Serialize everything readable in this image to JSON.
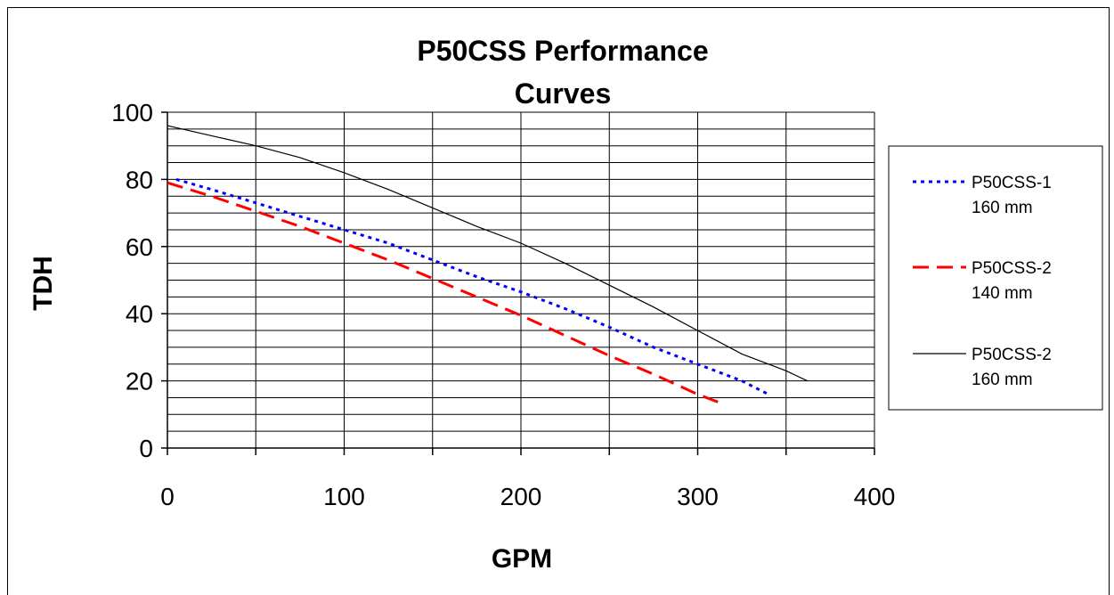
{
  "chart_data": {
    "type": "line",
    "title_line1": "P50CSS Performance",
    "title_line2": "Curves",
    "xlabel": "GPM",
    "ylabel": "TDH",
    "xlim": [
      0,
      400
    ],
    "ylim": [
      0,
      100
    ],
    "x_major_ticks": [
      0,
      100,
      200,
      300,
      400
    ],
    "x_tick_labels": [
      "0",
      "100",
      "200",
      "300",
      "400"
    ],
    "x_grid_step": 50,
    "y_major_ticks": [
      0,
      20,
      40,
      60,
      80,
      100
    ],
    "y_tick_labels": [
      "0",
      "20",
      "40",
      "60",
      "80",
      "100"
    ],
    "y_grid_step": 5,
    "grid": true,
    "legend_position": "right",
    "series": [
      {
        "name_line1": "P50CSS-1",
        "name_line2": "160 mm",
        "color": "#0000ff",
        "style": "dotted",
        "points": [
          [
            5,
            80
          ],
          [
            25,
            77
          ],
          [
            50,
            73
          ],
          [
            75,
            69
          ],
          [
            100,
            65
          ],
          [
            125,
            61
          ],
          [
            150,
            56
          ],
          [
            175,
            51
          ],
          [
            200,
            46.5
          ],
          [
            225,
            41.5
          ],
          [
            250,
            36
          ],
          [
            275,
            30
          ],
          [
            300,
            25
          ],
          [
            325,
            20
          ],
          [
            340,
            16
          ]
        ]
      },
      {
        "name_line1": "P50CSS-2",
        "name_line2": "140 mm",
        "color": "#ff0000",
        "style": "dashed",
        "points": [
          [
            0,
            79
          ],
          [
            25,
            75
          ],
          [
            50,
            70.5
          ],
          [
            75,
            66
          ],
          [
            100,
            61
          ],
          [
            125,
            56
          ],
          [
            150,
            50.5
          ],
          [
            175,
            45
          ],
          [
            200,
            39.5
          ],
          [
            225,
            33.5
          ],
          [
            250,
            27.5
          ],
          [
            275,
            22
          ],
          [
            300,
            16
          ],
          [
            315,
            13
          ]
        ]
      },
      {
        "name_line1": "P50CSS-2",
        "name_line2": "160 mm",
        "color": "#000000",
        "style": "solid",
        "points": [
          [
            0,
            96
          ],
          [
            25,
            93
          ],
          [
            50,
            90
          ],
          [
            75,
            86.5
          ],
          [
            100,
            82
          ],
          [
            125,
            77
          ],
          [
            150,
            71.5
          ],
          [
            175,
            66
          ],
          [
            200,
            61
          ],
          [
            225,
            55
          ],
          [
            250,
            48.5
          ],
          [
            275,
            42
          ],
          [
            300,
            35
          ],
          [
            325,
            28
          ],
          [
            350,
            23
          ],
          [
            362,
            20
          ]
        ]
      }
    ]
  }
}
